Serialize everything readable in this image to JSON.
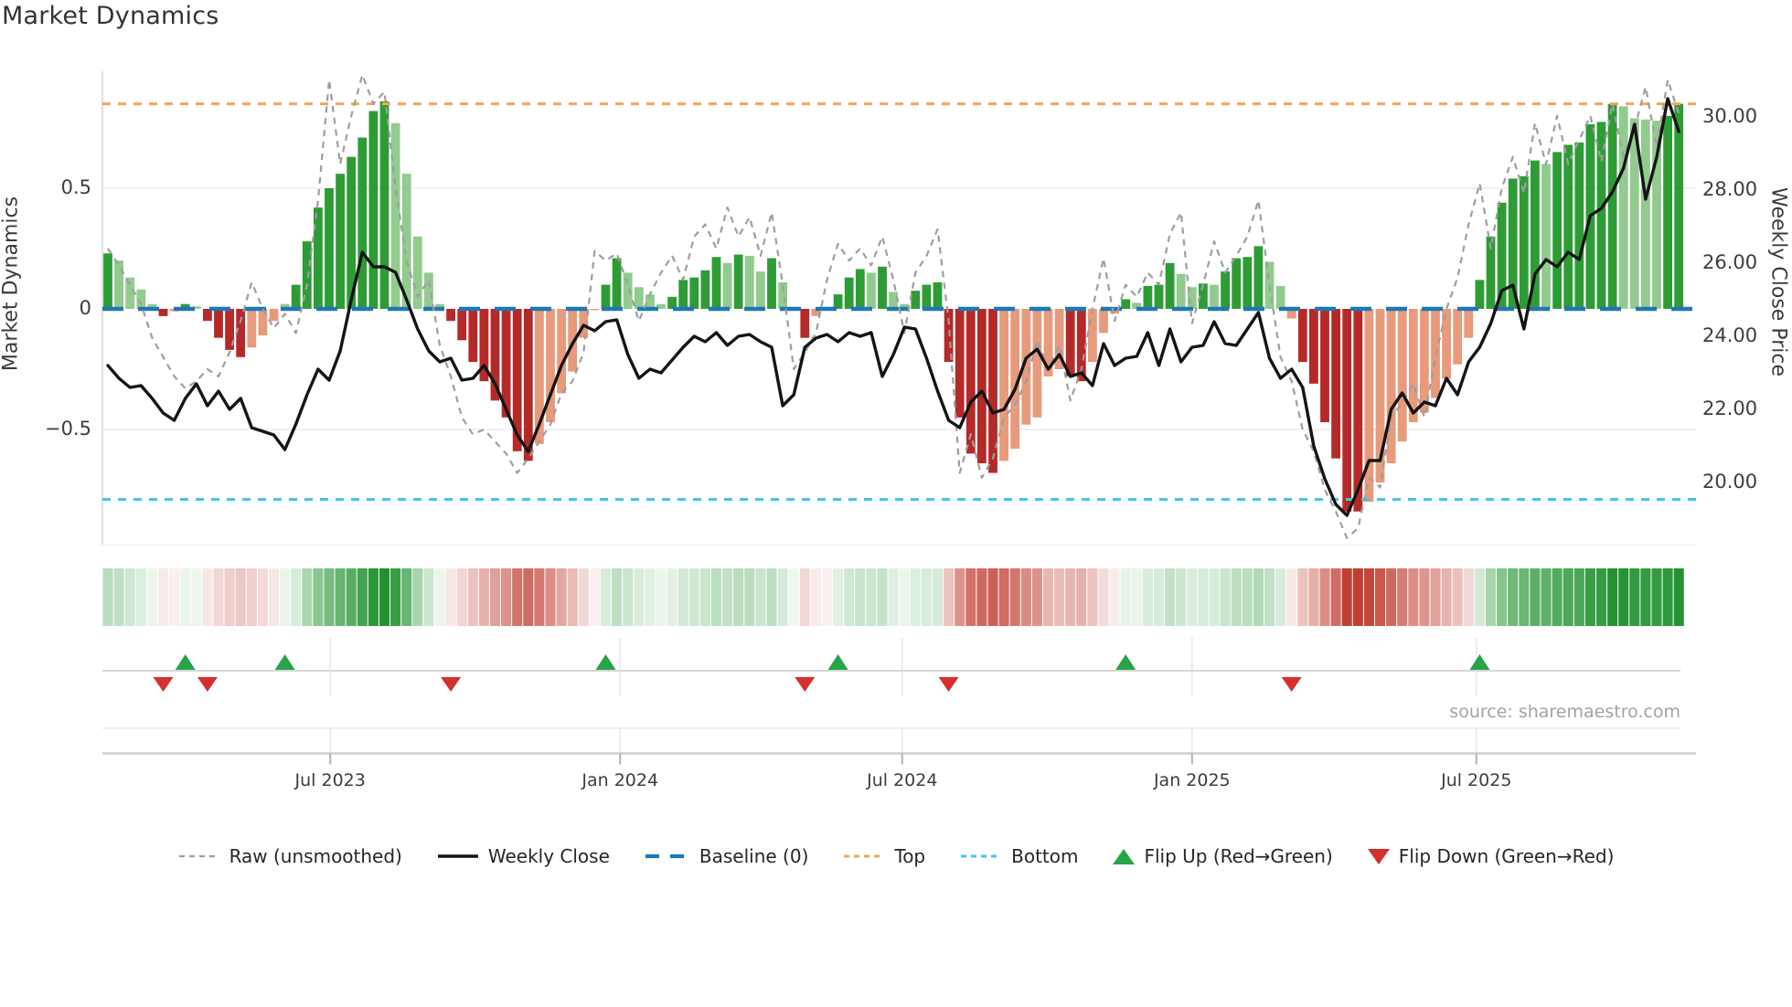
{
  "title": "Market Dynamics",
  "source": "source: sharemaestro.com",
  "axes": {
    "y_left": {
      "label": "Market Dynamics",
      "ticks": [
        {
          "value": 0.5,
          "label": "0.5"
        },
        {
          "value": 0,
          "label": "0"
        },
        {
          "value": -0.5,
          "label": "−0.5"
        }
      ]
    },
    "y_right": {
      "label": "Weekly Close Price",
      "ticks": [
        {
          "value": 30,
          "label": "30.00"
        },
        {
          "value": 28,
          "label": "28.00"
        },
        {
          "value": 26,
          "label": "26.00"
        },
        {
          "value": 24,
          "label": "24.00"
        },
        {
          "value": 22,
          "label": "22.00"
        },
        {
          "value": 20,
          "label": "20.00"
        }
      ]
    },
    "x": {
      "ticks": [
        {
          "label": "Jul 2023",
          "week": 20.1
        },
        {
          "label": "Jan 2024",
          "week": 46.3
        },
        {
          "label": "Jul 2024",
          "week": 71.8
        },
        {
          "label": "Jan 2025",
          "week": 98.0
        },
        {
          "label": "Jul 2025",
          "week": 123.7
        }
      ]
    }
  },
  "legend": {
    "items": [
      {
        "label": "Raw (unsmoothed)",
        "type": "raw"
      },
      {
        "label": "Weekly Close",
        "type": "close"
      },
      {
        "label": "Baseline (0)",
        "type": "baseline"
      },
      {
        "label": "Top",
        "type": "top"
      },
      {
        "label": "Bottom",
        "type": "bottom"
      },
      {
        "label": "Flip Up (Red→Green)",
        "type": "flipup"
      },
      {
        "label": "Flip Down (Green→Red)",
        "type": "flipdown"
      }
    ]
  },
  "colors": {
    "bar_dark_green": "#2e9c35",
    "bar_light_green": "#91cb8e",
    "bar_dark_red": "#b42a28",
    "bar_light_red": "#e79a7c",
    "baseline_blue": "#1f77b4",
    "top_orange": "#f2a65a",
    "bottom_cyan": "#41c7e9",
    "raw_gray": "#9e9e9e",
    "price_black": "#141414",
    "flip_green": "#27a348",
    "flip_red": "#d62f2f",
    "heat_green": "#219230",
    "heat_red": "#c03a2e",
    "grid": "#eceef1",
    "spine": "#d9d9d9",
    "axis_line": "#cfcfcf"
  },
  "chart_data": {
    "type": "bar",
    "title": "Market Dynamics",
    "xlabel": "",
    "ylabel_left": "Market Dynamics",
    "ylabel_right": "Weekly Close Price",
    "x_unit": "weeks (Feb 2023 → Nov 2025)",
    "osc_ylim": [
      -0.98,
      0.98
    ],
    "price_ylim": [
      18.3,
      31.25
    ],
    "grid_values": [
      0.5,
      -0.5
    ],
    "levels": {
      "baseline": 0,
      "top": 0.85,
      "bottom": -0.79
    },
    "series": [
      {
        "name": "Oscillator (bars)",
        "values": [
          0.23,
          0.2,
          0.13,
          0.08,
          0.02,
          -0.03,
          -0.01,
          0.02,
          0.01,
          -0.05,
          -0.12,
          -0.17,
          -0.2,
          -0.16,
          -0.11,
          -0.05,
          0.02,
          0.1,
          0.28,
          0.42,
          0.5,
          0.56,
          0.63,
          0.71,
          0.82,
          0.86,
          0.77,
          0.56,
          0.3,
          0.15,
          0.02,
          -0.05,
          -0.13,
          -0.22,
          -0.3,
          -0.38,
          -0.45,
          -0.59,
          -0.63,
          -0.56,
          -0.47,
          -0.35,
          -0.26,
          -0.12,
          -0.005,
          0.1,
          0.21,
          0.15,
          0.09,
          0.06,
          0.02,
          0.05,
          0.12,
          0.13,
          0.16,
          0.215,
          0.19,
          0.225,
          0.22,
          0.155,
          0.21,
          0.11,
          0.005,
          -0.12,
          -0.03,
          -0.005,
          0.06,
          0.13,
          0.165,
          0.15,
          0.175,
          0.07,
          0.02,
          0.075,
          0.1,
          0.11,
          -0.22,
          -0.45,
          -0.6,
          -0.64,
          -0.68,
          -0.63,
          -0.58,
          -0.48,
          -0.45,
          -0.28,
          -0.25,
          -0.28,
          -0.3,
          -0.22,
          -0.1,
          -0.02,
          0.04,
          0.025,
          0.095,
          0.1,
          0.19,
          0.145,
          0.09,
          0.105,
          0.1,
          0.155,
          0.21,
          0.215,
          0.26,
          0.195,
          0.095,
          -0.04,
          -0.22,
          -0.31,
          -0.47,
          -0.62,
          -0.84,
          -0.84,
          -0.8,
          -0.72,
          -0.64,
          -0.55,
          -0.47,
          -0.43,
          -0.37,
          -0.29,
          -0.23,
          -0.12,
          0.12,
          0.3,
          0.44,
          0.54,
          0.55,
          0.615,
          0.6,
          0.65,
          0.68,
          0.69,
          0.765,
          0.775,
          0.85,
          0.84,
          0.79,
          0.785,
          0.78,
          0.8,
          0.85
        ]
      },
      {
        "name": "Raw (unsmoothed)",
        "values": [
          0.25,
          0.18,
          0.1,
          0.02,
          -0.12,
          -0.2,
          -0.28,
          -0.33,
          -0.3,
          -0.25,
          -0.28,
          -0.18,
          -0.05,
          0.11,
          0.0,
          -0.08,
          -0.02,
          -0.1,
          0.1,
          0.45,
          0.95,
          0.6,
          0.8,
          0.97,
          0.85,
          0.9,
          0.5,
          0.2,
          0.05,
          0.12,
          -0.15,
          -0.28,
          -0.45,
          -0.52,
          -0.5,
          -0.55,
          -0.6,
          -0.68,
          -0.62,
          -0.55,
          -0.48,
          -0.35,
          -0.3,
          -0.18,
          0.24,
          0.2,
          0.23,
          0.1,
          -0.05,
          0.06,
          0.15,
          0.22,
          0.12,
          0.3,
          0.35,
          0.25,
          0.42,
          0.3,
          0.38,
          0.22,
          0.4,
          0.1,
          -0.25,
          -0.18,
          -0.1,
          0.12,
          0.27,
          0.2,
          0.25,
          0.18,
          0.3,
          0.12,
          -0.1,
          0.15,
          0.22,
          0.33,
          -0.05,
          -0.68,
          -0.52,
          -0.7,
          -0.62,
          -0.45,
          -0.4,
          -0.3,
          -0.13,
          -0.25,
          -0.15,
          -0.38,
          -0.25,
          0.0,
          0.21,
          -0.05,
          0.1,
          0.05,
          0.15,
          0.1,
          0.31,
          0.4,
          -0.06,
          0.1,
          0.28,
          0.15,
          0.22,
          0.3,
          0.45,
          0.1,
          -0.2,
          -0.3,
          -0.5,
          -0.59,
          -0.75,
          -0.84,
          -0.95,
          -0.91,
          -0.7,
          -0.74,
          -0.45,
          -0.39,
          -0.31,
          -0.45,
          -0.2,
          0.0,
          0.13,
          0.35,
          0.52,
          0.25,
          0.5,
          0.63,
          0.48,
          0.77,
          0.6,
          0.8,
          0.6,
          0.7,
          0.8,
          0.61,
          0.85,
          0.63,
          0.75,
          0.92,
          0.67,
          0.95,
          0.81
        ]
      },
      {
        "name": "Weekly Close",
        "values": [
          23.2,
          22.85,
          22.6,
          22.65,
          22.3,
          21.9,
          21.7,
          22.3,
          22.7,
          22.1,
          22.5,
          22.0,
          22.3,
          21.5,
          21.4,
          21.3,
          20.9,
          21.6,
          22.4,
          23.1,
          22.8,
          23.6,
          25.0,
          26.3,
          25.9,
          25.9,
          25.75,
          25.0,
          24.2,
          23.6,
          23.3,
          23.4,
          22.8,
          22.85,
          23.2,
          22.7,
          22.0,
          21.3,
          20.85,
          21.6,
          22.4,
          23.2,
          23.8,
          24.3,
          24.15,
          24.4,
          24.45,
          23.5,
          22.85,
          23.1,
          23.0,
          23.35,
          23.7,
          24.0,
          23.85,
          24.1,
          23.75,
          24.0,
          24.05,
          23.85,
          23.7,
          22.1,
          22.4,
          23.7,
          23.95,
          24.05,
          23.85,
          24.1,
          24.0,
          24.1,
          22.9,
          23.5,
          24.25,
          24.2,
          23.4,
          22.5,
          21.7,
          21.5,
          22.2,
          22.5,
          21.9,
          22.0,
          22.55,
          23.4,
          23.65,
          23.1,
          23.5,
          22.9,
          23.0,
          22.65,
          23.8,
          23.2,
          23.4,
          23.45,
          24.1,
          23.2,
          24.2,
          23.3,
          23.7,
          23.75,
          24.4,
          23.8,
          23.75,
          24.2,
          24.65,
          23.4,
          22.85,
          23.1,
          22.6,
          21.0,
          20.1,
          19.4,
          19.1,
          19.8,
          20.6,
          20.6,
          22.0,
          22.45,
          21.9,
          22.2,
          22.1,
          22.85,
          22.4,
          23.3,
          23.7,
          24.35,
          25.25,
          25.4,
          24.2,
          25.7,
          26.1,
          25.9,
          26.3,
          26.1,
          27.3,
          27.5,
          27.95,
          28.6,
          29.8,
          27.75,
          28.9,
          30.5,
          29.6
        ]
      }
    ],
    "markers": {
      "flip_up_weeks": [
        7,
        16,
        45,
        66,
        92,
        124
      ],
      "flip_down_weeks": [
        5,
        9,
        31,
        63,
        76,
        107
      ]
    },
    "heatmap": "mirrors oscillator values as red-green intensity strip",
    "legend_position": "bottom"
  }
}
